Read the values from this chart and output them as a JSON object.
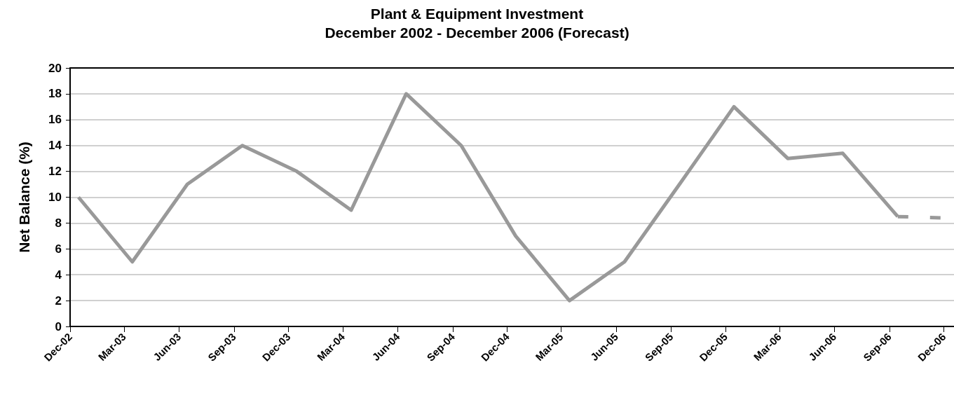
{
  "chart_data": {
    "type": "line",
    "title": "Plant & Equipment Investment",
    "subtitle": "December 2002 - December 2006 (Forecast)",
    "ylabel": "Net Balance (%)",
    "x": [
      "2002-12-15",
      "2003-03-15",
      "2003-06-15",
      "2003-09-15",
      "2003-12-15",
      "2004-03-15",
      "2004-06-15",
      "2004-09-15",
      "2004-12-15",
      "2005-03-15",
      "2005-06-15",
      "2005-09-15",
      "2005-12-15",
      "2006-03-15",
      "2006-06-15",
      "2006-09-15",
      "2006-11-28"
    ],
    "series": [
      {
        "color": "#999999",
        "values": [
          10,
          5,
          11,
          14,
          12,
          9,
          18,
          14,
          7,
          2,
          5,
          11,
          17,
          13,
          13.4,
          8.5,
          null
        ]
      },
      {
        "color": "#999999",
        "line_style": "dashed",
        "values": [
          null,
          null,
          null,
          null,
          null,
          null,
          null,
          null,
          null,
          null,
          null,
          null,
          null,
          null,
          null,
          8.5,
          8.4
        ]
      }
    ],
    "xlim": [
      "2002-12-01",
      "2006-12-18"
    ],
    "xticks": [
      {
        "value": "2002-12-01",
        "label": "Dec-02"
      },
      {
        "value": "2003-03-01",
        "label": "Mar-03"
      },
      {
        "value": "2003-06-01",
        "label": "Jun-03"
      },
      {
        "value": "2003-09-01",
        "label": "Sep-03"
      },
      {
        "value": "2003-12-01",
        "label": "Dec-03"
      },
      {
        "value": "2004-03-01",
        "label": "Mar-04"
      },
      {
        "value": "2004-06-01",
        "label": "Jun-04"
      },
      {
        "value": "2004-09-01",
        "label": "Sep-04"
      },
      {
        "value": "2004-12-01",
        "label": "Dec-04"
      },
      {
        "value": "2005-03-01",
        "label": "Mar-05"
      },
      {
        "value": "2005-06-01",
        "label": "Jun-05"
      },
      {
        "value": "2005-09-01",
        "label": "Sep-05"
      },
      {
        "value": "2005-12-01",
        "label": "Dec-05"
      },
      {
        "value": "2006-03-01",
        "label": "Mar-06"
      },
      {
        "value": "2006-06-01",
        "label": "Jun-06"
      },
      {
        "value": "2006-09-01",
        "label": "Sep-06"
      },
      {
        "value": "2006-12-01",
        "label": "Dec-06"
      }
    ],
    "ylim": [
      0,
      20
    ],
    "yticks": [
      0,
      2,
      4,
      6,
      8,
      10,
      12,
      14,
      16,
      18,
      20
    ],
    "grid": "y",
    "marker": "none"
  }
}
